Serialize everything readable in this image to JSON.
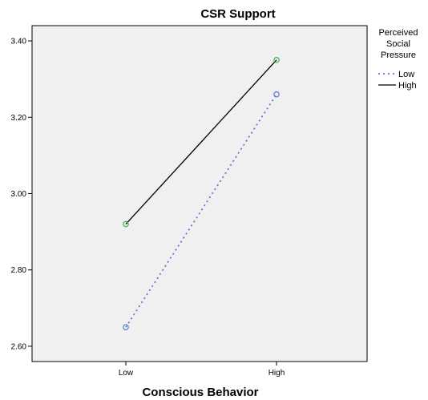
{
  "chart_data": {
    "type": "line",
    "title": "CSR Support",
    "xlabel": "Conscious Behavior",
    "ylabel": "",
    "categories": [
      "Low",
      "High"
    ],
    "ylim": [
      2.56,
      3.44
    ],
    "yticks": [
      "2.60",
      "2.80",
      "3.00",
      "3.20",
      "3.40"
    ],
    "y_tick_values": [
      2.6,
      2.8,
      3.0,
      3.2,
      3.4
    ],
    "legend": {
      "title_lines": [
        "Perceived",
        "Social",
        "Pressure"
      ],
      "position": "right"
    },
    "series": [
      {
        "name": "Low",
        "values": [
          2.65,
          3.26
        ],
        "line_color": "#5b78d6",
        "marker_color": "#5b78d6",
        "dash": true
      },
      {
        "name": "High",
        "values": [
          2.92,
          3.35
        ],
        "line_color": "#000000",
        "marker_color": "#3cb54a",
        "dash": false
      }
    ],
    "plot_background": "#f0f0f0",
    "grid": false
  }
}
